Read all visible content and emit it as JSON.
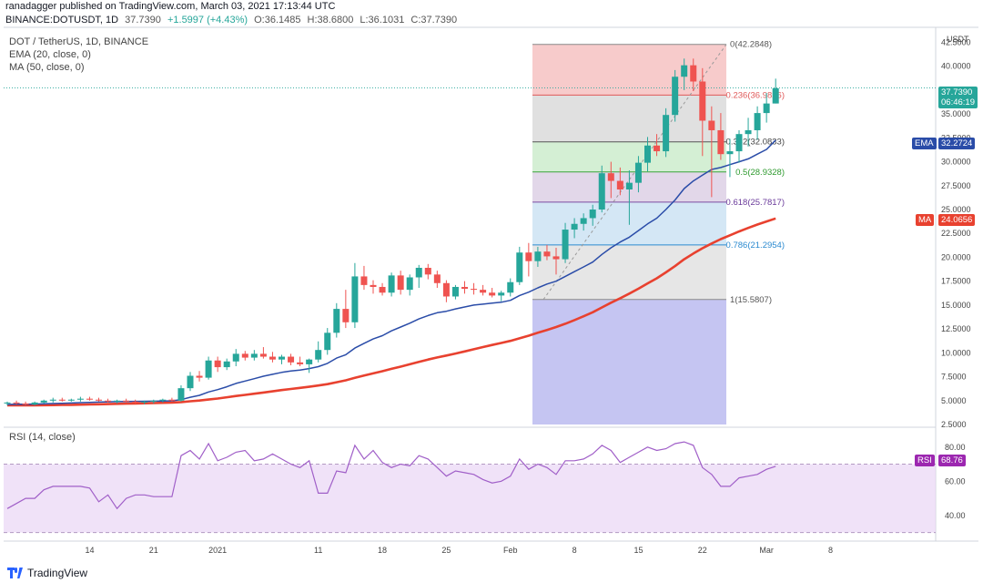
{
  "header": {
    "publish_line": "ranadagger published on TradingView.com, March 03, 2021 17:13:44 UTC",
    "symbol_line": "BINANCE:DOTUSDT, 1D",
    "last": "37.7390",
    "change": "+1.5997 (+4.43%)",
    "open": "O:36.1485",
    "high": "H:38.6800",
    "low": "L:36.1031",
    "close": "C:37.7390"
  },
  "legend": {
    "title": "DOT / TetherUS, 1D, BINANCE",
    "ema": "EMA (20, close, 0)",
    "ma": "MA (50, close, 0)",
    "rsi": "RSI (14, close)"
  },
  "axis": {
    "currency": "USDT",
    "price_ticks": [
      "42.5000",
      "40.0000",
      "37.5000",
      "35.0000",
      "32.5000",
      "30.0000",
      "27.5000",
      "25.0000",
      "22.5000",
      "20.0000",
      "17.5000",
      "15.0000",
      "12.5000",
      "10.0000",
      "7.5000",
      "5.0000",
      "2.5000"
    ],
    "rsi_ticks": [
      "80.00",
      "60.00",
      "40.00"
    ],
    "x_ticks": [
      "14",
      "21",
      "2021",
      "11",
      "18",
      "25",
      "Feb",
      "8",
      "15",
      "22",
      "Mar",
      "8"
    ]
  },
  "badges": {
    "price": "37.7390",
    "countdown": "06:46:19",
    "ema_name": "EMA",
    "ema_value": "32.2724",
    "ma_name": "MA",
    "ma_value": "24.0656",
    "rsi_name": "RSI",
    "rsi_value": "68.76"
  },
  "fib_labels": [
    "0(42.2848)",
    "0.236(36.9826)",
    "0.382(32.0833)",
    "0.5(28.9328)",
    "0.618(25.7817)",
    "0.786(21.2954)",
    "1(15.5807)"
  ],
  "footer": {
    "brand": "TradingView"
  },
  "colors": {
    "up": "#26a69a",
    "down": "#ef5350",
    "ema": "#2a4ca8",
    "ma": "#e8412f",
    "rsi": "#a05fc8",
    "fib_0": "#f4b9b9",
    "fib_236": "#d6d6d6",
    "fib_382": "#c5e9c5",
    "fib_5": "#d8c9e2",
    "fib_618": "#c5dff1",
    "fib_786": "#dedede",
    "fib_1": "#bbbbf0"
  },
  "chart_data": {
    "type": "candlestick",
    "title": "DOT / TetherUS, 1D, BINANCE",
    "ylim": [
      2.5,
      43.5
    ],
    "rsi_ylim": [
      25,
      90
    ],
    "fib_levels": [
      {
        "ratio": "0",
        "price": 42.2848
      },
      {
        "ratio": "0.236",
        "price": 36.9826
      },
      {
        "ratio": "0.382",
        "price": 32.0833
      },
      {
        "ratio": "0.5",
        "price": 28.9328
      },
      {
        "ratio": "0.618",
        "price": 25.7817
      },
      {
        "ratio": "0.786",
        "price": 21.2954
      },
      {
        "ratio": "1",
        "price": 15.5807
      }
    ],
    "candles": [
      [
        4.7,
        4.9,
        4.5,
        4.8
      ],
      [
        4.8,
        5.0,
        4.6,
        4.7
      ],
      [
        4.7,
        4.9,
        4.5,
        4.6
      ],
      [
        4.6,
        4.9,
        4.5,
        4.8
      ],
      [
        4.8,
        5.1,
        4.7,
        5.0
      ],
      [
        5.0,
        5.3,
        4.8,
        5.1
      ],
      [
        5.1,
        5.3,
        4.9,
        5.0
      ],
      [
        5.0,
        5.2,
        4.9,
        5.1
      ],
      [
        5.1,
        5.4,
        4.9,
        5.2
      ],
      [
        5.2,
        5.4,
        5.0,
        5.1
      ],
      [
        5.1,
        5.3,
        4.9,
        5.0
      ],
      [
        5.0,
        5.2,
        4.8,
        4.9
      ],
      [
        4.9,
        5.1,
        4.7,
        5.0
      ],
      [
        5.0,
        5.2,
        4.8,
        4.9
      ],
      [
        4.9,
        5.1,
        4.7,
        4.8
      ],
      [
        4.8,
        5.0,
        4.6,
        4.9
      ],
      [
        4.9,
        5.1,
        4.7,
        5.0
      ],
      [
        5.0,
        5.2,
        4.8,
        5.1
      ],
      [
        5.1,
        5.3,
        4.9,
        5.0
      ],
      [
        5.0,
        6.6,
        4.9,
        6.3
      ],
      [
        6.3,
        8.0,
        6.0,
        7.6
      ],
      [
        7.6,
        8.1,
        7.0,
        7.4
      ],
      [
        7.4,
        9.6,
        7.2,
        9.2
      ],
      [
        9.2,
        9.6,
        8.0,
        8.5
      ],
      [
        8.5,
        9.4,
        8.2,
        9.1
      ],
      [
        9.1,
        10.4,
        8.6,
        9.9
      ],
      [
        9.9,
        10.2,
        9.2,
        9.5
      ],
      [
        9.5,
        10.3,
        9.2,
        9.9
      ],
      [
        9.9,
        10.6,
        9.4,
        9.6
      ],
      [
        9.6,
        10.1,
        9.0,
        9.3
      ],
      [
        9.3,
        9.8,
        8.8,
        9.6
      ],
      [
        9.6,
        9.9,
        8.7,
        9.0
      ],
      [
        9.0,
        9.6,
        8.6,
        8.8
      ],
      [
        8.8,
        9.4,
        7.9,
        9.3
      ],
      [
        9.3,
        11.2,
        9.0,
        10.3
      ],
      [
        10.3,
        12.6,
        9.8,
        12.1
      ],
      [
        12.1,
        15.2,
        11.6,
        14.6
      ],
      [
        14.6,
        16.6,
        12.6,
        13.2
      ],
      [
        13.2,
        19.4,
        12.6,
        18.0
      ],
      [
        18.0,
        19.1,
        16.6,
        17.1
      ],
      [
        17.1,
        17.6,
        16.2,
        16.9
      ],
      [
        16.9,
        17.3,
        16.0,
        16.3
      ],
      [
        16.3,
        18.4,
        15.9,
        18.1
      ],
      [
        18.1,
        18.6,
        16.1,
        16.6
      ],
      [
        16.6,
        18.2,
        16.0,
        17.9
      ],
      [
        17.9,
        19.2,
        16.8,
        18.9
      ],
      [
        18.9,
        19.3,
        17.7,
        18.2
      ],
      [
        18.2,
        18.6,
        16.8,
        17.3
      ],
      [
        17.3,
        17.6,
        15.3,
        15.9
      ],
      [
        15.9,
        17.1,
        15.6,
        16.9
      ],
      [
        16.9,
        17.5,
        16.2,
        16.7
      ],
      [
        16.7,
        17.3,
        16.1,
        16.6
      ],
      [
        16.6,
        17.1,
        16.0,
        16.3
      ],
      [
        16.3,
        16.8,
        15.8,
        16.0
      ],
      [
        16.0,
        16.5,
        15.4,
        16.3
      ],
      [
        16.3,
        17.8,
        15.9,
        17.4
      ],
      [
        17.4,
        21.1,
        17.1,
        20.5
      ],
      [
        20.5,
        21.5,
        18.0,
        19.6
      ],
      [
        19.6,
        21.1,
        19.0,
        20.6
      ],
      [
        20.6,
        21.3,
        19.7,
        20.1
      ],
      [
        20.1,
        21.0,
        18.2,
        19.8
      ],
      [
        19.8,
        23.6,
        19.4,
        22.9
      ],
      [
        22.9,
        24.1,
        22.0,
        23.5
      ],
      [
        23.5,
        24.6,
        22.8,
        24.1
      ],
      [
        24.1,
        25.5,
        23.3,
        25.0
      ],
      [
        25.0,
        29.6,
        24.7,
        28.8
      ],
      [
        28.8,
        30.0,
        26.2,
        28.0
      ],
      [
        28.0,
        29.4,
        26.5,
        27.1
      ],
      [
        27.1,
        29.1,
        23.4,
        27.8
      ],
      [
        27.8,
        30.6,
        26.8,
        29.9
      ],
      [
        29.9,
        32.6,
        29.0,
        31.7
      ],
      [
        31.7,
        32.9,
        30.6,
        31.1
      ],
      [
        31.1,
        35.6,
        30.5,
        34.9
      ],
      [
        34.9,
        39.6,
        34.2,
        38.9
      ],
      [
        38.9,
        40.8,
        37.5,
        40.1
      ],
      [
        40.1,
        40.8,
        37.4,
        38.4
      ],
      [
        38.4,
        39.8,
        30.6,
        34.3
      ],
      [
        34.3,
        35.8,
        26.3,
        33.3
      ],
      [
        33.3,
        35.1,
        30.2,
        30.8
      ],
      [
        30.8,
        32.4,
        28.4,
        31.1
      ],
      [
        31.1,
        33.3,
        29.9,
        32.9
      ],
      [
        32.9,
        34.6,
        31.6,
        33.3
      ],
      [
        33.3,
        35.8,
        32.3,
        35.1
      ],
      [
        35.1,
        37.2,
        34.1,
        36.1
      ],
      [
        36.1,
        38.7,
        36.1,
        37.7
      ]
    ],
    "ema20": [
      4.6,
      4.62,
      4.63,
      4.64,
      4.66,
      4.69,
      4.72,
      4.75,
      4.79,
      4.82,
      4.85,
      4.87,
      4.89,
      4.91,
      4.92,
      4.93,
      4.94,
      4.96,
      4.98,
      5.1,
      5.35,
      5.55,
      5.9,
      6.15,
      6.45,
      6.8,
      7.05,
      7.3,
      7.55,
      7.75,
      7.95,
      8.1,
      8.2,
      8.35,
      8.55,
      8.9,
      9.45,
      9.8,
      10.5,
      11.0,
      11.45,
      11.8,
      12.3,
      12.7,
      13.1,
      13.55,
      13.9,
      14.2,
      14.35,
      14.6,
      14.8,
      15.0,
      15.1,
      15.2,
      15.3,
      15.5,
      16.0,
      16.35,
      16.8,
      17.2,
      17.5,
      18.0,
      18.5,
      19.0,
      19.5,
      20.3,
      21.0,
      21.6,
      22.1,
      22.8,
      23.5,
      24.1,
      25.0,
      26.0,
      27.2,
      28.0,
      28.6,
      29.2,
      29.4,
      29.7,
      30.0,
      30.3,
      30.8,
      31.3,
      32.27
    ],
    "ma50": [
      4.5,
      4.5,
      4.5,
      4.51,
      4.52,
      4.53,
      4.55,
      4.56,
      4.58,
      4.6,
      4.62,
      4.64,
      4.66,
      4.68,
      4.7,
      4.72,
      4.74,
      4.77,
      4.8,
      4.85,
      4.93,
      5.01,
      5.11,
      5.22,
      5.35,
      5.48,
      5.6,
      5.72,
      5.85,
      5.97,
      6.1,
      6.22,
      6.33,
      6.45,
      6.58,
      6.72,
      6.92,
      7.12,
      7.38,
      7.62,
      7.85,
      8.08,
      8.33,
      8.55,
      8.8,
      9.05,
      9.3,
      9.52,
      9.72,
      9.93,
      10.15,
      10.38,
      10.6,
      10.82,
      11.03,
      11.25,
      11.52,
      11.8,
      12.1,
      12.4,
      12.7,
      13.05,
      13.43,
      13.83,
      14.25,
      14.75,
      15.25,
      15.72,
      16.2,
      16.72,
      17.27,
      17.8,
      18.42,
      19.08,
      19.8,
      20.4,
      20.95,
      21.45,
      21.9,
      22.3,
      22.7,
      23.08,
      23.43,
      23.75,
      24.07
    ],
    "rsi": [
      44,
      47,
      50,
      50,
      55,
      57,
      57,
      57,
      57,
      56,
      48,
      52,
      44,
      50,
      52,
      52,
      51,
      51,
      51,
      75,
      78,
      73,
      82,
      72,
      74,
      77,
      78,
      72,
      73,
      76,
      73,
      70,
      68,
      72,
      53,
      53,
      66,
      65,
      81,
      73,
      78,
      71,
      68,
      70,
      69,
      75,
      73,
      68,
      63,
      66,
      65,
      64,
      61,
      59,
      60,
      63,
      73,
      67,
      70,
      68,
      64,
      72,
      72,
      73,
      76,
      81,
      78,
      71,
      74,
      77,
      80,
      78,
      79,
      82,
      83,
      81,
      68,
      64,
      57,
      57,
      62,
      63,
      64,
      67,
      68.76
    ]
  }
}
